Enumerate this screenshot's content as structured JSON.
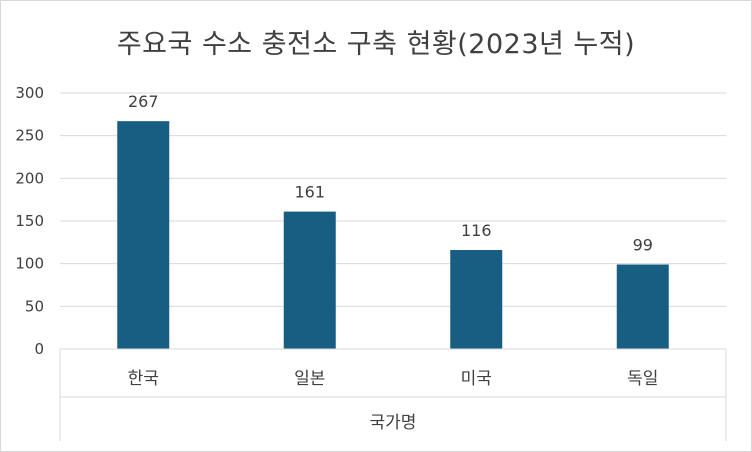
{
  "chart_data": {
    "type": "bar",
    "title": "주요국 수소 충전소 구축 현황(2023년 누적)",
    "xlabel": "국가명",
    "ylabel": "",
    "categories": [
      "한국",
      "일본",
      "미국",
      "독일"
    ],
    "values": [
      267,
      161,
      116,
      99
    ],
    "ylim": [
      0,
      300
    ],
    "yticks": [
      0,
      50,
      100,
      150,
      200,
      250,
      300
    ],
    "grid": true,
    "legend": "none",
    "bar_color": "#175e82",
    "data_labels": true
  }
}
